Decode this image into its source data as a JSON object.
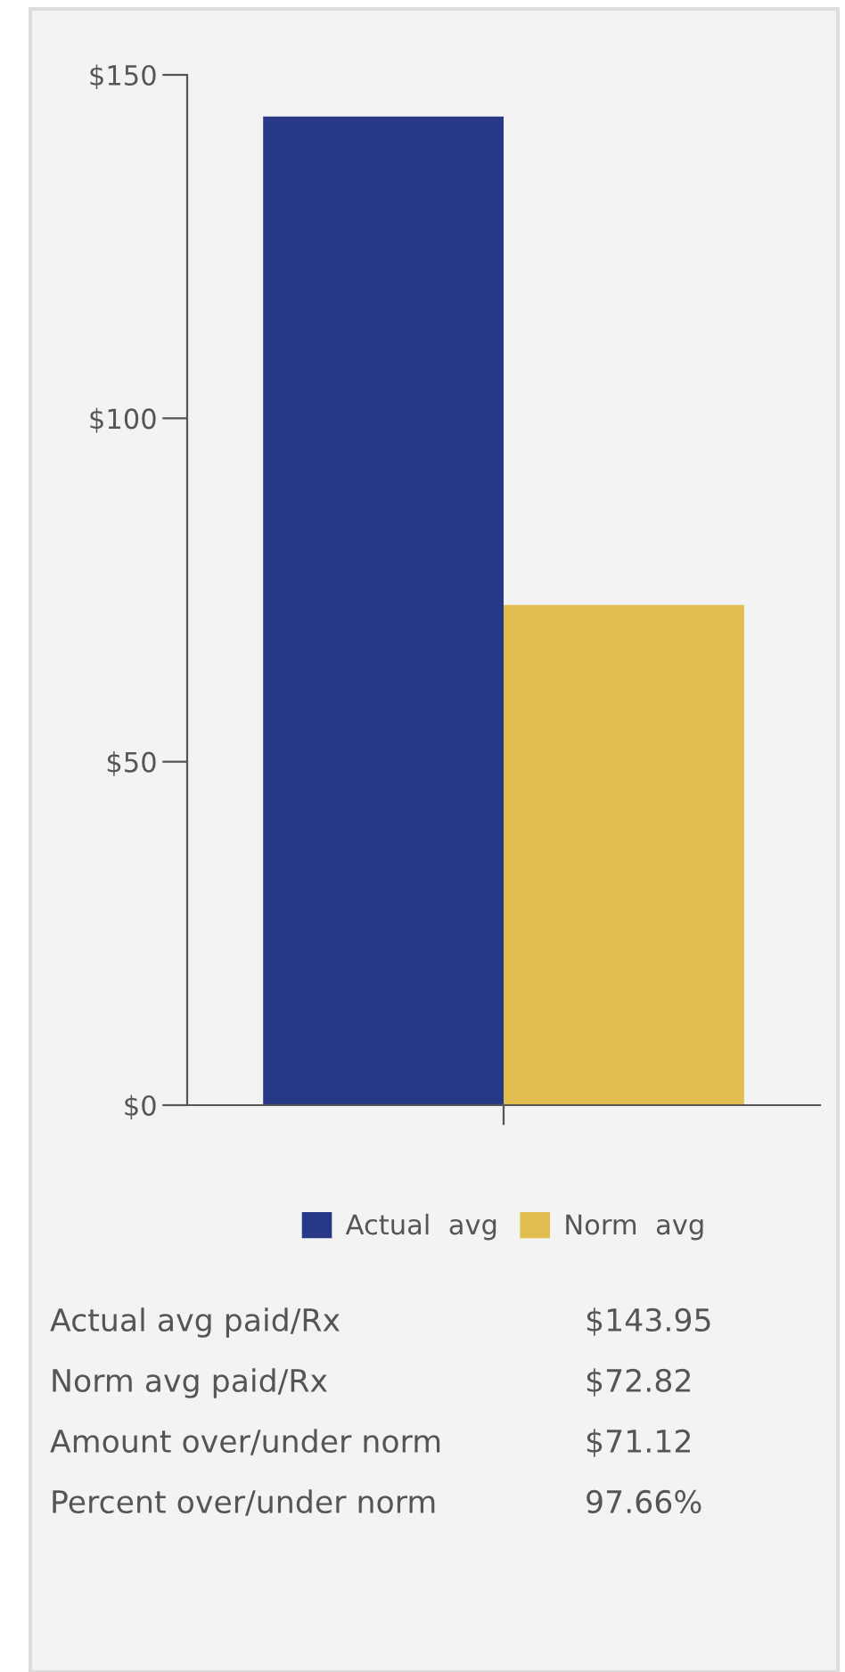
{
  "chart_data": {
    "type": "bar",
    "categories": [
      null
    ],
    "series": [
      {
        "name": "Actual  avg",
        "color": "#263886",
        "values": [
          143.95
        ]
      },
      {
        "name": "Norm  avg",
        "color": "#e0bd4e",
        "values": [
          72.82
        ]
      }
    ],
    "ylim": [
      0,
      150
    ],
    "yticks": [
      {
        "value": 0,
        "label": "$0"
      },
      {
        "value": 50,
        "label": "$50"
      },
      {
        "value": 100,
        "label": "$100"
      },
      {
        "value": 150,
        "label": "$150"
      }
    ],
    "legend": "bottom",
    "grid": false,
    "annotations": [
      "Actual avg paid/Rx",
      "$143.95",
      "Norm avg paid/Rx",
      "$72.82",
      "Amount over/under norm",
      "$71.12",
      "Percent over/under norm",
      "97.66%"
    ]
  }
}
